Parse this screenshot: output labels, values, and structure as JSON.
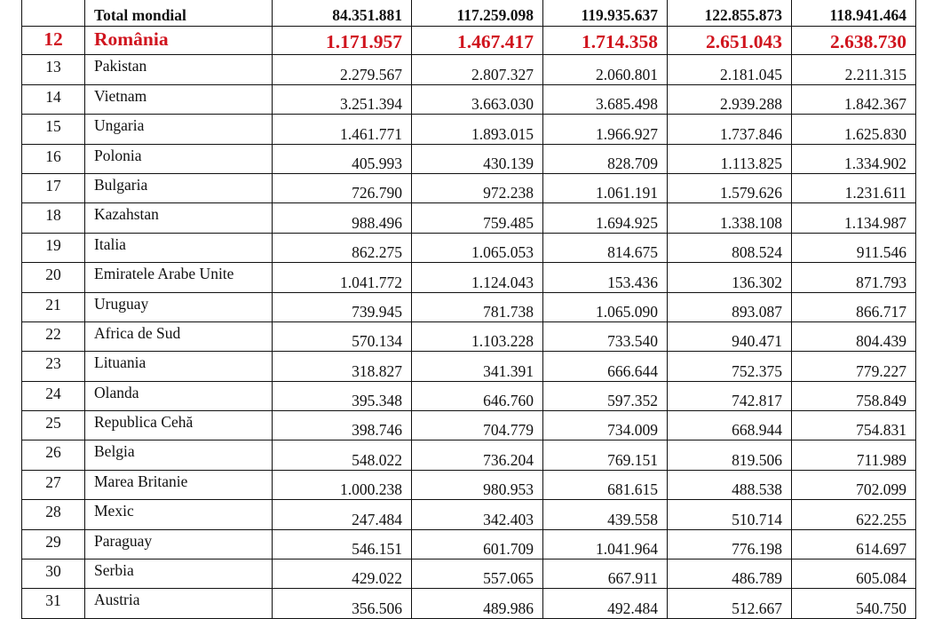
{
  "table": {
    "highlight_color": "#d0141e",
    "total_row": {
      "rank": "",
      "name": "Total mondial",
      "values": [
        "84.351.881",
        "117.259.098",
        "119.935.637",
        "122.855.873",
        "118.941.464"
      ]
    },
    "rows": [
      {
        "rank": "12",
        "name": "România",
        "values": [
          "1.171.957",
          "1.467.417",
          "1.714.358",
          "2.651.043",
          "2.638.730"
        ],
        "highlight": true
      },
      {
        "rank": "13",
        "name": "Pakistan",
        "values": [
          "2.279.567",
          "2.807.327",
          "2.060.801",
          "2.181.045",
          "2.211.315"
        ]
      },
      {
        "rank": "14",
        "name": "Vietnam",
        "values": [
          "3.251.394",
          "3.663.030",
          "3.685.498",
          "2.939.288",
          "1.842.367"
        ]
      },
      {
        "rank": "15",
        "name": "Ungaria",
        "values": [
          "1.461.771",
          "1.893.015",
          "1.966.927",
          "1.737.846",
          "1.625.830"
        ]
      },
      {
        "rank": "16",
        "name": "Polonia",
        "values": [
          "405.993",
          "430.139",
          "828.709",
          "1.113.825",
          "1.334.902"
        ]
      },
      {
        "rank": "17",
        "name": "Bulgaria",
        "values": [
          "726.790",
          "972.238",
          "1.061.191",
          "1.579.626",
          "1.231.611"
        ]
      },
      {
        "rank": "18",
        "name": "Kazahstan",
        "values": [
          "988.496",
          "759.485",
          "1.694.925",
          "1.338.108",
          "1.134.987"
        ]
      },
      {
        "rank": "19",
        "name": "Italia",
        "values": [
          "862.275",
          "1.065.053",
          "814.675",
          "808.524",
          "911.546"
        ]
      },
      {
        "rank": "20",
        "name": "Emiratele Arabe Unite",
        "values": [
          "1.041.772",
          "1.124.043",
          "153.436",
          "136.302",
          "871.793"
        ]
      },
      {
        "rank": "21",
        "name": "Uruguay",
        "values": [
          "739.945",
          "781.738",
          "1.065.090",
          "893.087",
          "866.717"
        ]
      },
      {
        "rank": "22",
        "name": "Africa de Sud",
        "values": [
          "570.134",
          "1.103.228",
          "733.540",
          "940.471",
          "804.439"
        ]
      },
      {
        "rank": "23",
        "name": "Lituania",
        "values": [
          "318.827",
          "341.391",
          "666.644",
          "752.375",
          "779.227"
        ]
      },
      {
        "rank": "24",
        "name": "Olanda",
        "values": [
          "395.348",
          "646.760",
          "597.352",
          "742.817",
          "758.849"
        ]
      },
      {
        "rank": "25",
        "name": "Republica Cehă",
        "values": [
          "398.746",
          "704.779",
          "734.009",
          "668.944",
          "754.831"
        ]
      },
      {
        "rank": "26",
        "name": "Belgia",
        "values": [
          "548.022",
          "736.204",
          "769.151",
          "819.506",
          "711.989"
        ]
      },
      {
        "rank": "27",
        "name": "Marea Britanie",
        "values": [
          "1.000.238",
          "980.953",
          "681.615",
          "488.538",
          "702.099"
        ]
      },
      {
        "rank": "28",
        "name": "Mexic",
        "values": [
          "247.484",
          "342.403",
          "439.558",
          "510.714",
          "622.255"
        ]
      },
      {
        "rank": "29",
        "name": "Paraguay",
        "values": [
          "546.151",
          "601.709",
          "1.041.964",
          "776.198",
          "614.697"
        ]
      },
      {
        "rank": "30",
        "name": "Serbia",
        "values": [
          "429.022",
          "557.065",
          "667.911",
          "486.789",
          "605.084"
        ]
      },
      {
        "rank": "31",
        "name": "Austria",
        "values": [
          "356.506",
          "489.986",
          "492.484",
          "512.667",
          "540.750"
        ]
      }
    ]
  }
}
